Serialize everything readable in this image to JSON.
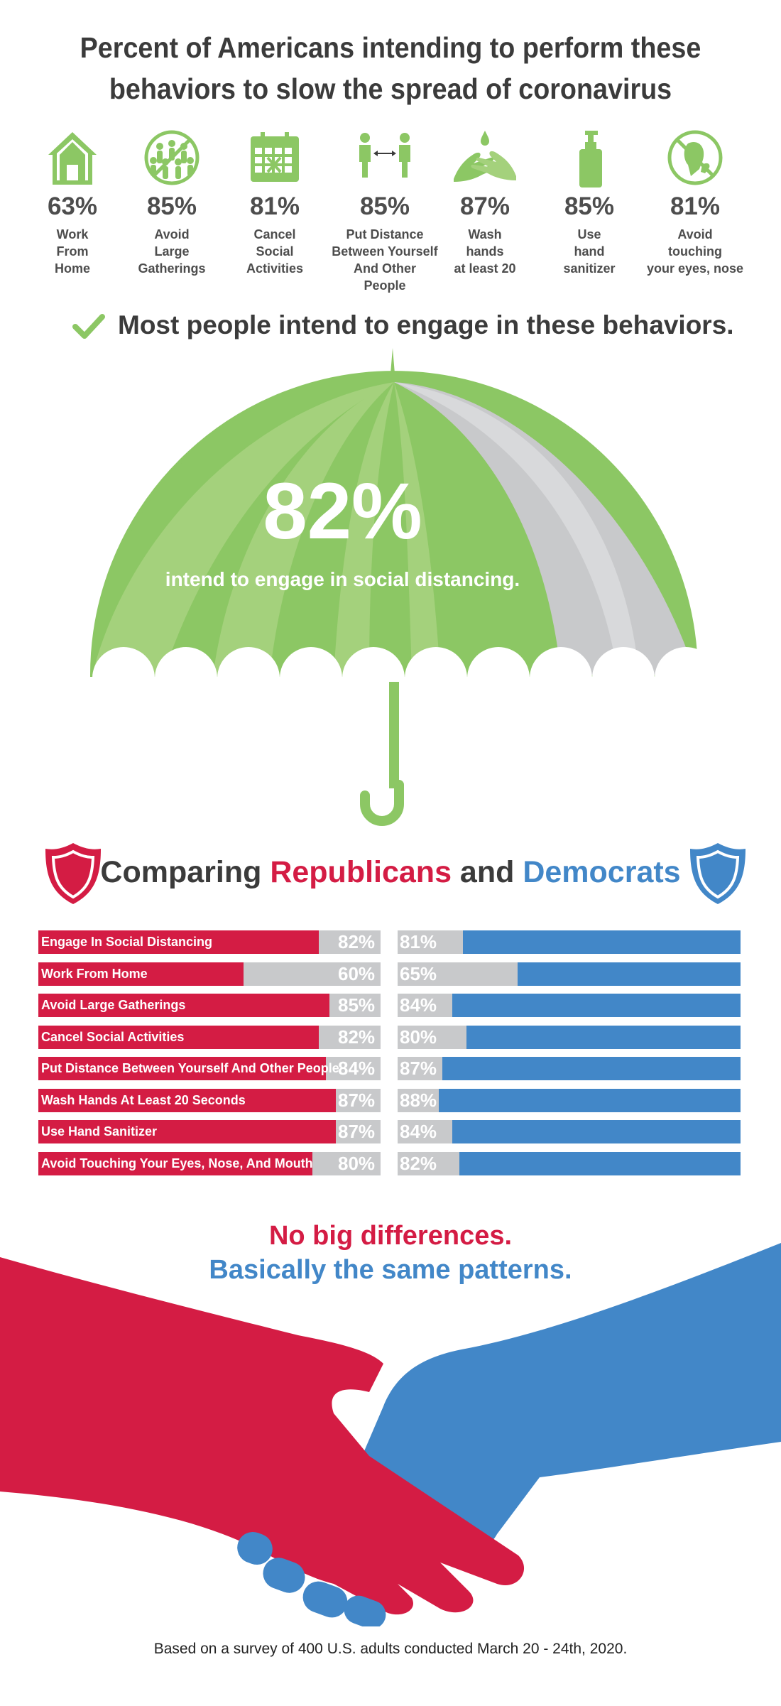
{
  "title_line1": "Percent of Americans intending to perform these",
  "title_line2": "behaviors to slow the spread of coronavirus",
  "colors": {
    "green": "#8cc764",
    "light_green": "#a4d17c",
    "gray": "#c8c9cb",
    "red": "#d41c44",
    "blue": "#4287c8",
    "dark": "#3b3b3b"
  },
  "behaviors": [
    {
      "icon": "house-icon",
      "pct": "63%",
      "lines": [
        "Work",
        "From",
        "Home"
      ]
    },
    {
      "icon": "crowd-icon",
      "pct": "85%",
      "lines": [
        "Avoid",
        "Large",
        "Gatherings"
      ]
    },
    {
      "icon": "calendar-icon",
      "pct": "81%",
      "lines": [
        "Cancel",
        "Social",
        "Activities"
      ]
    },
    {
      "icon": "distance-icon",
      "pct": "85%",
      "lines": [
        "Put Distance",
        "Between Yourself",
        "And Other",
        "People"
      ]
    },
    {
      "icon": "washing-hands-icon",
      "pct": "87%",
      "lines": [
        "Wash",
        "hands",
        "at least 20"
      ]
    },
    {
      "icon": "sanitizer-icon",
      "pct": "85%",
      "lines": [
        "Use",
        "hand",
        "sanitizer"
      ]
    },
    {
      "icon": "no-face-touching-icon",
      "pct": "81%",
      "lines": [
        "Avoid",
        "touching",
        "your eyes, nose"
      ]
    }
  ],
  "most_people": "Most people intend to engage in these behaviors.",
  "umbrella": {
    "pct": "82%",
    "value": 82,
    "text": "intend to engage in social distancing."
  },
  "compare": {
    "prefix": "Comparing ",
    "rep": "Republicans",
    "and": " and ",
    "dem": "Democrats"
  },
  "chart_data": {
    "type": "bar",
    "categories": [
      "Engage In Social Distancing",
      "Work From Home",
      "Avoid Large Gatherings",
      "Cancel Social Activities",
      "Put Distance Between Yourself And Other People",
      "Wash Hands At Least 20 Seconds",
      "Use Hand Sanitizer",
      "Avoid Touching Your Eyes, Nose, And Mouth"
    ],
    "series": [
      {
        "name": "Republicans",
        "values": [
          82,
          60,
          85,
          82,
          84,
          87,
          87,
          80
        ],
        "labels": [
          "82%",
          "60%",
          "85%",
          "82%",
          "84%",
          "87%",
          "87%",
          "80%"
        ],
        "color": "#d41c44"
      },
      {
        "name": "Democrats",
        "values": [
          81,
          65,
          84,
          80,
          87,
          88,
          84,
          82
        ],
        "labels": [
          "81%",
          "65%",
          "84%",
          "80%",
          "87%",
          "88%",
          "84%",
          "82%"
        ],
        "color": "#4287c8"
      }
    ],
    "ylim": [
      0,
      100
    ]
  },
  "diff_line1": "No big differences.",
  "diff_line2": "Basically the same patterns.",
  "footer": "Based on a survey of 400 U.S. adults conducted March 20 - 24th, 2020."
}
